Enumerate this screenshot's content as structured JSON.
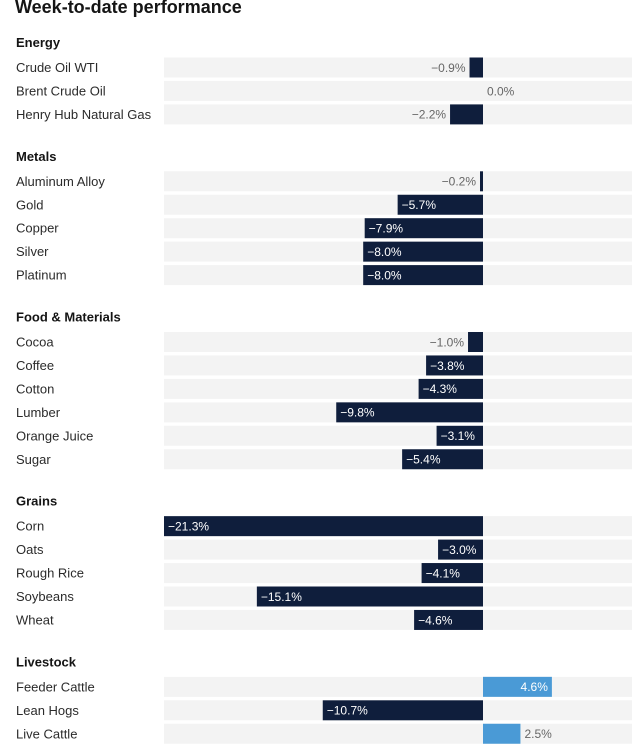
{
  "chart_data": {
    "type": "bar",
    "title": "Week-to-date performance",
    "groups": [
      {
        "name": "Energy",
        "items": [
          {
            "label": "Crude Oil WTI",
            "value": -0.9,
            "display": "−0.9%"
          },
          {
            "label": "Brent Crude Oil",
            "value": 0.0,
            "display": "0.0%"
          },
          {
            "label": "Henry Hub Natural Gas",
            "value": -2.2,
            "display": "−2.2%"
          }
        ]
      },
      {
        "name": "Metals",
        "items": [
          {
            "label": "Aluminum Alloy",
            "value": -0.2,
            "display": "−0.2%"
          },
          {
            "label": "Gold",
            "value": -5.7,
            "display": "−5.7%"
          },
          {
            "label": "Copper",
            "value": -7.9,
            "display": "−7.9%"
          },
          {
            "label": "Silver",
            "value": -8.0,
            "display": "−8.0%"
          },
          {
            "label": "Platinum",
            "value": -8.0,
            "display": "−8.0%"
          }
        ]
      },
      {
        "name": "Food & Materials",
        "items": [
          {
            "label": "Cocoa",
            "value": -1.0,
            "display": "−1.0%"
          },
          {
            "label": "Coffee",
            "value": -3.8,
            "display": "−3.8%"
          },
          {
            "label": "Cotton",
            "value": -4.3,
            "display": "−4.3%"
          },
          {
            "label": "Lumber",
            "value": -9.8,
            "display": "−9.8%"
          },
          {
            "label": "Orange Juice",
            "value": -3.1,
            "display": "−3.1%"
          },
          {
            "label": "Sugar",
            "value": -5.4,
            "display": "−5.4%"
          }
        ]
      },
      {
        "name": "Grains",
        "items": [
          {
            "label": "Corn",
            "value": -21.3,
            "display": "−21.3%"
          },
          {
            "label": "Oats",
            "value": -3.0,
            "display": "−3.0%"
          },
          {
            "label": "Rough Rice",
            "value": -4.1,
            "display": "−4.1%"
          },
          {
            "label": "Soybeans",
            "value": -15.1,
            "display": "−15.1%"
          },
          {
            "label": "Wheat",
            "value": -4.6,
            "display": "−4.6%"
          }
        ]
      },
      {
        "name": "Livestock",
        "items": [
          {
            "label": "Feeder Cattle",
            "value": 4.6,
            "display": "4.6%"
          },
          {
            "label": "Lean Hogs",
            "value": -10.7,
            "display": "−10.7%"
          },
          {
            "label": "Live Cattle",
            "value": 2.5,
            "display": "2.5%"
          }
        ]
      }
    ],
    "colors": {
      "negative": "#0f1e3c",
      "positive": "#4a9ad6",
      "row_bg": "#f3f3f3"
    },
    "grid": false,
    "legend": "none"
  }
}
